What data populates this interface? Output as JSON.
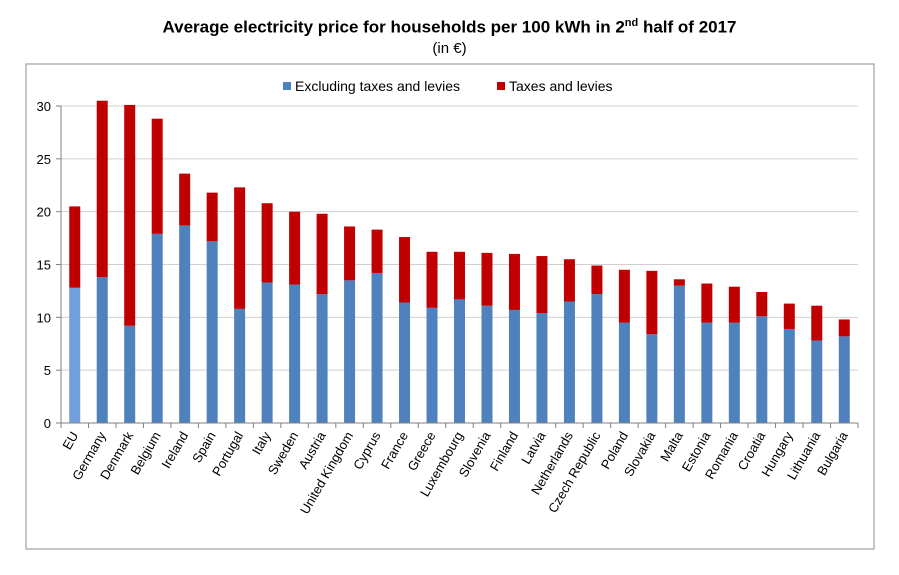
{
  "chart_data": {
    "type": "bar",
    "stacked": true,
    "title": {
      "prefix": "Average electricity price for households per 100 kWh in 2",
      "superscript": "nd",
      "suffix": " half of 2017"
    },
    "subtitle": "(in €)",
    "xlabel": "",
    "ylabel": "",
    "ylim": [
      0,
      30
    ],
    "yticks": [
      0,
      5,
      10,
      15,
      20,
      25,
      30
    ],
    "grid": true,
    "legend_position": "top",
    "categories": [
      "EU",
      "Germany",
      "Denmark",
      "Belgium",
      "Ireland",
      "Spain",
      "Portugal",
      "Italy",
      "Sweden",
      "Austria",
      "United Kingdom",
      "Cyprus",
      "France",
      "Greece",
      "Luxembourg",
      "Slovenia",
      "Finland",
      "Latvia",
      "Netherlands",
      "Czech Republic",
      "Poland",
      "Slovakia",
      "Malta",
      "Estonia",
      "Romania",
      "Croatia",
      "Hungary",
      "Lithuania",
      "Bulgaria"
    ],
    "series": [
      {
        "name": "Excluding taxes and levies",
        "color": "#4F81BD",
        "values": [
          12.8,
          13.8,
          9.2,
          17.9,
          18.7,
          17.2,
          10.8,
          13.3,
          13.1,
          12.2,
          13.5,
          14.2,
          11.4,
          10.9,
          11.7,
          11.1,
          10.7,
          10.4,
          11.5,
          12.2,
          9.5,
          8.4,
          13.0,
          9.5,
          9.5,
          10.1,
          8.9,
          7.8,
          8.2
        ]
      },
      {
        "name": "Taxes and levies",
        "color": "#C00000",
        "values": [
          7.7,
          16.7,
          20.9,
          10.9,
          4.9,
          4.6,
          11.5,
          7.5,
          6.9,
          7.6,
          5.1,
          4.1,
          6.2,
          5.3,
          4.5,
          5.0,
          5.3,
          5.4,
          4.0,
          2.7,
          5.0,
          6.0,
          0.6,
          3.7,
          3.4,
          2.3,
          2.4,
          3.3,
          1.6
        ]
      }
    ],
    "highlight": {
      "category": "EU",
      "colors": [
        "#6FA0DC",
        "#C00000"
      ]
    }
  }
}
